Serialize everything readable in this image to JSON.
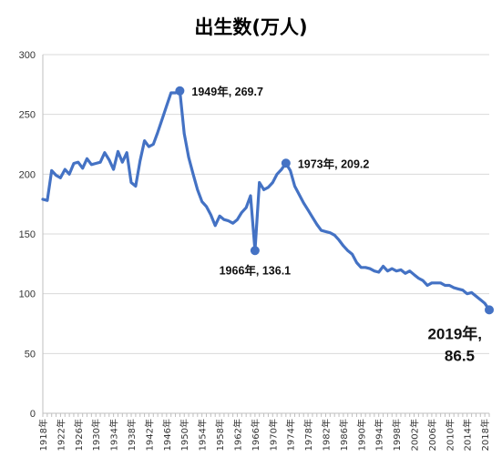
{
  "chart_data": {
    "type": "line",
    "title": "出生数(万人)",
    "xlabel": "",
    "ylabel": "",
    "ylim": [
      0,
      300
    ],
    "yticks": [
      "0",
      "50",
      "100",
      "150",
      "200",
      "250",
      "300"
    ],
    "grid": true,
    "legend": "none",
    "xtick_labels": [
      "1918年",
      "1922年",
      "1926年",
      "1930年",
      "1934年",
      "1938年",
      "1942年",
      "1946年",
      "1950年",
      "1954年",
      "1958年",
      "1962年",
      "1966年",
      "1970年",
      "1974年",
      "1978年",
      "1982年",
      "1986年",
      "1990年",
      "1994年",
      "1998年",
      "2002年",
      "2006年",
      "2010年",
      "2014年",
      "2018年"
    ],
    "series": [
      {
        "color": "#4472C4",
        "x": [
          1918,
          1919,
          1920,
          1921,
          1922,
          1923,
          1924,
          1925,
          1926,
          1927,
          1928,
          1929,
          1930,
          1931,
          1932,
          1933,
          1934,
          1935,
          1936,
          1937,
          1938,
          1939,
          1940,
          1941,
          1942,
          1943,
          1944,
          1945,
          1946,
          1947,
          1948,
          1949,
          1950,
          1951,
          1952,
          1953,
          1954,
          1955,
          1956,
          1957,
          1958,
          1959,
          1960,
          1961,
          1962,
          1963,
          1964,
          1965,
          1966,
          1967,
          1968,
          1969,
          1970,
          1971,
          1972,
          1973,
          1974,
          1975,
          1976,
          1977,
          1978,
          1979,
          1980,
          1981,
          1982,
          1983,
          1984,
          1985,
          1986,
          1987,
          1988,
          1989,
          1990,
          1991,
          1992,
          1993,
          1994,
          1995,
          1996,
          1997,
          1998,
          1999,
          2000,
          2001,
          2002,
          2003,
          2004,
          2005,
          2006,
          2007,
          2008,
          2009,
          2010,
          2011,
          2012,
          2013,
          2014,
          2015,
          2016,
          2017,
          2018,
          2019
        ],
        "y": [
          179,
          178,
          203,
          199,
          197,
          204,
          200,
          209,
          210,
          205,
          213,
          208,
          209,
          210,
          218,
          212,
          204,
          219,
          210,
          218,
          193,
          190,
          211,
          228,
          223,
          225,
          235,
          246,
          257,
          268,
          268,
          269.7,
          234,
          214,
          200,
          187,
          177,
          173,
          166,
          157,
          165,
          162,
          161,
          159,
          162,
          168,
          172,
          182,
          136.1,
          193,
          187,
          189,
          193,
          200,
          204,
          209.2,
          203,
          190,
          183,
          176,
          170,
          164,
          158,
          153,
          152,
          151,
          149,
          145,
          140,
          136,
          133,
          126,
          122,
          122,
          121,
          119,
          118,
          123,
          119,
          121,
          119,
          120,
          117,
          119,
          116,
          113,
          111,
          107,
          109,
          109,
          109,
          107,
          107,
          105,
          104,
          103,
          100,
          101,
          98,
          95,
          92,
          86.5
        ]
      }
    ],
    "annotations": [
      {
        "x": 1949,
        "y": 269.7,
        "label": "1949年, 269.7"
      },
      {
        "x": 1973,
        "y": 209.2,
        "label": "1973年, 209.2"
      },
      {
        "x": 1966,
        "y": 136.1,
        "label": "1966年, 136.1"
      },
      {
        "x": 2019,
        "y": 86.5,
        "label_line1": "2019年,",
        "label_line2": "86.5"
      }
    ]
  }
}
